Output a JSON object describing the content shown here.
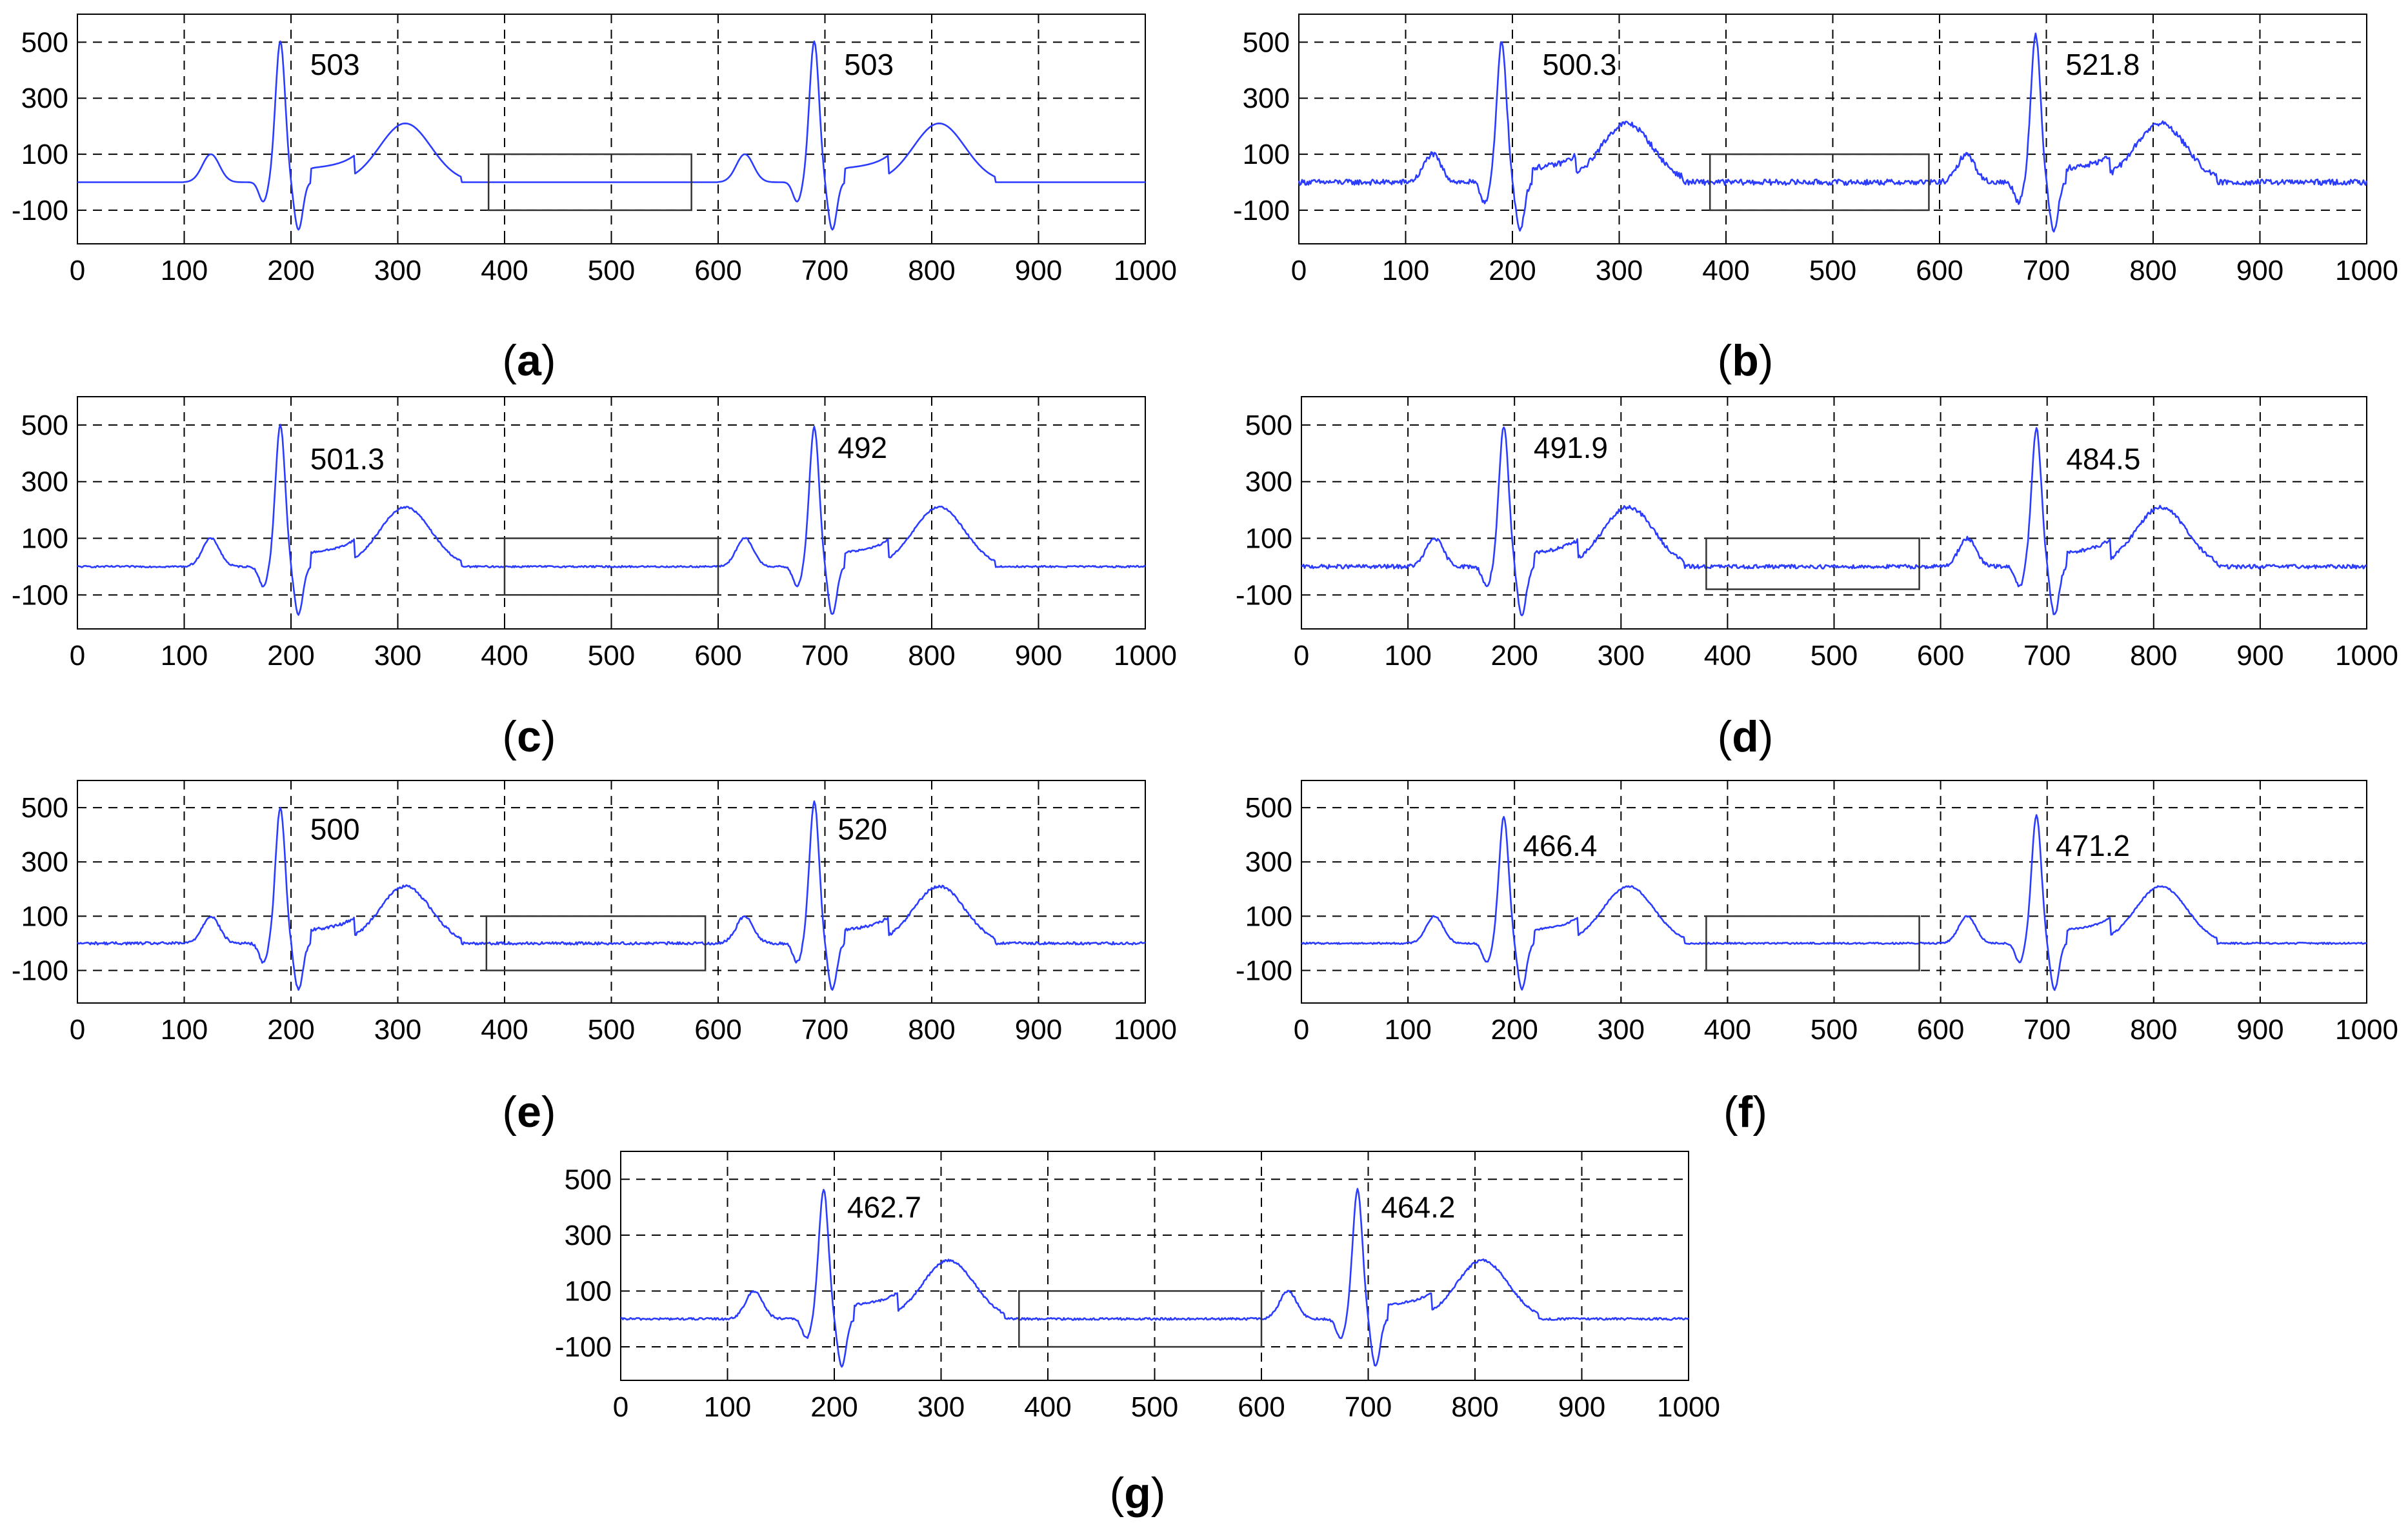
{
  "chart_data": [
    {
      "type": "line",
      "panel_label": "a",
      "xlim": [
        0,
        1000
      ],
      "ylim": [
        -220,
        600
      ],
      "x_ticks": [
        0,
        100,
        200,
        300,
        400,
        500,
        600,
        700,
        800,
        900,
        1000
      ],
      "y_ticks": [
        500,
        300,
        100,
        -100
      ],
      "grid": "dashed",
      "series": [
        {
          "name": "ECG",
          "color": "#2b3cff",
          "r_peaks": [
            {
              "x": 190,
              "y": 503
            },
            {
              "x": 690,
              "y": 503
            }
          ],
          "noise": 0,
          "baseline": 0
        }
      ],
      "annotations": [
        {
          "text": "503",
          "x": 218,
          "y": 420
        },
        {
          "text": "503",
          "x": 718,
          "y": 420
        }
      ],
      "highlight_box": {
        "x": [
          385,
          575
        ],
        "y": [
          -100,
          100
        ]
      }
    },
    {
      "type": "line",
      "panel_label": "b",
      "xlim": [
        0,
        1000
      ],
      "ylim": [
        -220,
        600
      ],
      "x_ticks": [
        0,
        100,
        200,
        300,
        400,
        500,
        600,
        700,
        800,
        900,
        1000
      ],
      "y_ticks": [
        500,
        300,
        100,
        -100
      ],
      "grid": "dashed",
      "series": [
        {
          "name": "ECG",
          "color": "#2b3cff",
          "r_peaks": [
            {
              "x": 190,
              "y": 500.3
            },
            {
              "x": 690,
              "y": 521.8
            }
          ],
          "noise": 10,
          "baseline": 0
        }
      ],
      "annotations": [
        {
          "text": "500.3",
          "x": 228,
          "y": 420
        },
        {
          "text": "521.8",
          "x": 718,
          "y": 420
        }
      ],
      "highlight_box": {
        "x": [
          385,
          590
        ],
        "y": [
          -100,
          100
        ]
      }
    },
    {
      "type": "line",
      "panel_label": "c",
      "xlim": [
        0,
        1000
      ],
      "ylim": [
        -220,
        600
      ],
      "x_ticks": [
        0,
        100,
        200,
        300,
        400,
        500,
        600,
        700,
        800,
        900,
        1000
      ],
      "y_ticks": [
        500,
        300,
        100,
        -100
      ],
      "grid": "dashed",
      "series": [
        {
          "name": "ECG",
          "color": "#2b3cff",
          "r_peaks": [
            {
              "x": 190,
              "y": 501.3
            },
            {
              "x": 690,
              "y": 492
            }
          ],
          "noise": 3,
          "baseline": 0
        }
      ],
      "annotations": [
        {
          "text": "501.3",
          "x": 218,
          "y": 380
        },
        {
          "text": "492",
          "x": 712,
          "y": 420
        }
      ],
      "highlight_box": {
        "x": [
          400,
          600
        ],
        "y": [
          -100,
          100
        ]
      }
    },
    {
      "type": "line",
      "panel_label": "d",
      "xlim": [
        0,
        1000
      ],
      "ylim": [
        -220,
        600
      ],
      "x_ticks": [
        0,
        100,
        200,
        300,
        400,
        500,
        600,
        700,
        800,
        900,
        1000
      ],
      "y_ticks": [
        500,
        300,
        100,
        -100
      ],
      "grid": "dashed",
      "series": [
        {
          "name": "ECG",
          "color": "#2b3cff",
          "r_peaks": [
            {
              "x": 190,
              "y": 491.9
            },
            {
              "x": 690,
              "y": 484.5
            }
          ],
          "noise": 7,
          "baseline": 0
        }
      ],
      "annotations": [
        {
          "text": "491.9",
          "x": 218,
          "y": 420
        },
        {
          "text": "484.5",
          "x": 718,
          "y": 380
        }
      ],
      "highlight_box": {
        "x": [
          380,
          580
        ],
        "y": [
          -80,
          100
        ]
      }
    },
    {
      "type": "line",
      "panel_label": "e",
      "xlim": [
        0,
        1000
      ],
      "ylim": [
        -220,
        600
      ],
      "x_ticks": [
        0,
        100,
        200,
        300,
        400,
        500,
        600,
        700,
        800,
        900,
        1000
      ],
      "y_ticks": [
        500,
        300,
        100,
        -100
      ],
      "grid": "dashed",
      "series": [
        {
          "name": "ECG",
          "color": "#2b3cff",
          "r_peaks": [
            {
              "x": 190,
              "y": 500
            },
            {
              "x": 690,
              "y": 520
            }
          ],
          "noise": 5,
          "baseline": 0
        }
      ],
      "annotations": [
        {
          "text": "500",
          "x": 218,
          "y": 420
        },
        {
          "text": "520",
          "x": 712,
          "y": 420
        }
      ],
      "highlight_box": {
        "x": [
          383,
          588
        ],
        "y": [
          -100,
          100
        ]
      }
    },
    {
      "type": "line",
      "panel_label": "f",
      "xlim": [
        0,
        1000
      ],
      "ylim": [
        -220,
        600
      ],
      "x_ticks": [
        0,
        100,
        200,
        300,
        400,
        500,
        600,
        700,
        800,
        900,
        1000
      ],
      "y_ticks": [
        500,
        300,
        100,
        -100
      ],
      "grid": "dashed",
      "series": [
        {
          "name": "ECG",
          "color": "#2b3cff",
          "r_peaks": [
            {
              "x": 190,
              "y": 466.4
            },
            {
              "x": 690,
              "y": 471.2
            }
          ],
          "noise": 3,
          "baseline": 0
        }
      ],
      "annotations": [
        {
          "text": "466.4",
          "x": 208,
          "y": 360
        },
        {
          "text": "471.2",
          "x": 708,
          "y": 360
        }
      ],
      "highlight_box": {
        "x": [
          380,
          580
        ],
        "y": [
          -100,
          100
        ]
      }
    },
    {
      "type": "line",
      "panel_label": "g",
      "xlim": [
        0,
        1000
      ],
      "ylim": [
        -220,
        600
      ],
      "x_ticks": [
        0,
        100,
        200,
        300,
        400,
        500,
        600,
        700,
        800,
        900,
        1000
      ],
      "y_ticks": [
        500,
        300,
        100,
        -100
      ],
      "grid": "dashed",
      "series": [
        {
          "name": "ECG",
          "color": "#2b3cff",
          "r_peaks": [
            {
              "x": 190,
              "y": 462.7
            },
            {
              "x": 690,
              "y": 464.2
            }
          ],
          "noise": 4,
          "baseline": 0
        }
      ],
      "annotations": [
        {
          "text": "462.7",
          "x": 212,
          "y": 400
        },
        {
          "text": "464.2",
          "x": 712,
          "y": 400
        }
      ],
      "highlight_box": {
        "x": [
          373,
          600
        ],
        "y": [
          -100,
          100
        ]
      }
    }
  ]
}
